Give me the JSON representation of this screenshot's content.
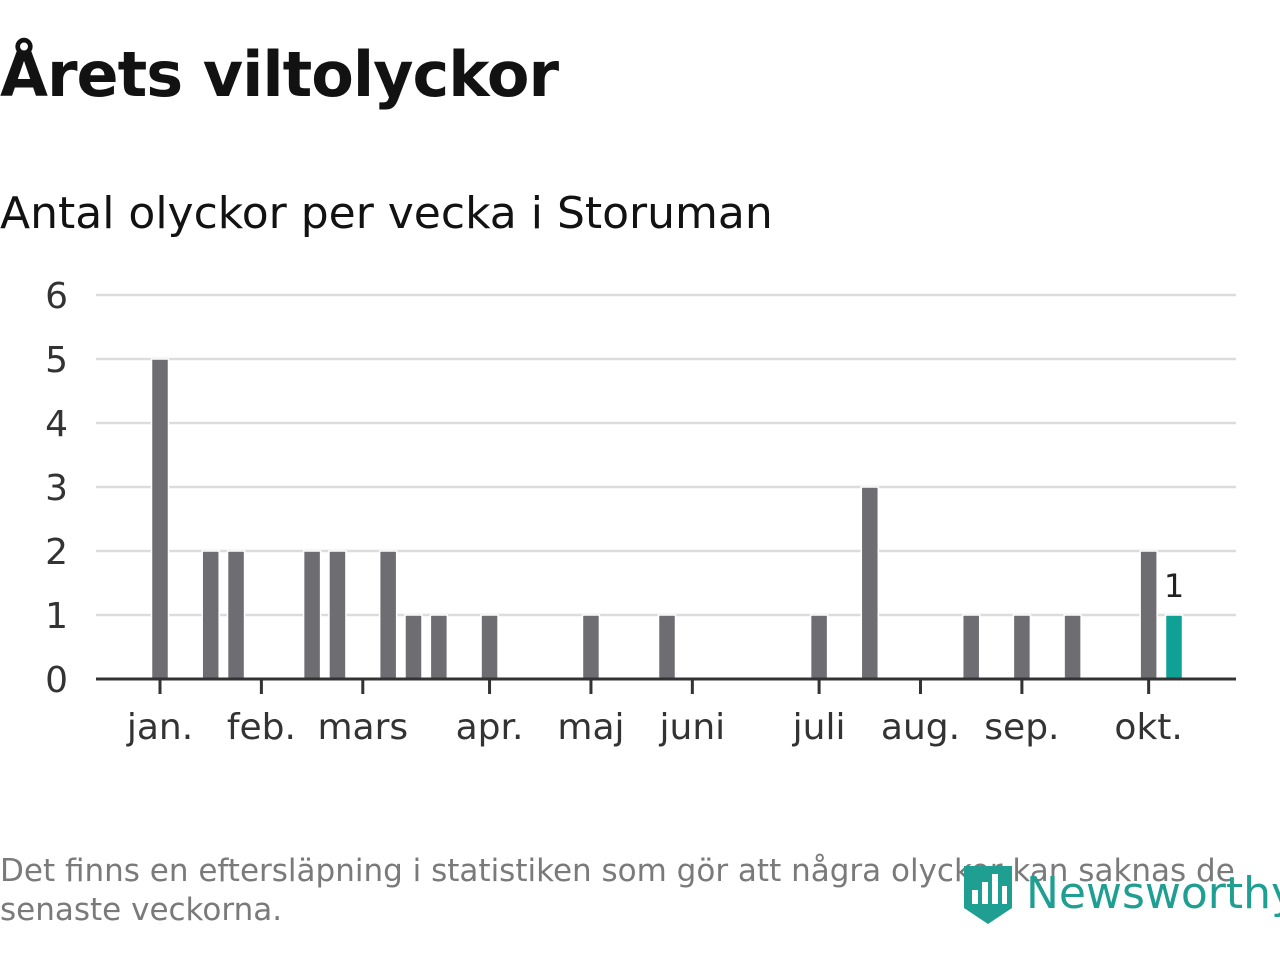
{
  "header": {
    "title": "Årets viltolyckor",
    "subtitle": "Antal olyckor per vecka i Storuman"
  },
  "chart_data": {
    "type": "bar",
    "title": "Årets viltolyckor",
    "subtitle": "Antal olyckor per vecka i Storuman",
    "xlabel": "",
    "ylabel": "",
    "ylim": [
      0,
      6
    ],
    "yticks": [
      "0",
      "1",
      "2",
      "3",
      "4",
      "5",
      "6"
    ],
    "grid": true,
    "week_labels": [
      "jan.",
      "feb.",
      "mars",
      "apr.",
      "maj",
      "juni",
      "juli",
      "aug.",
      "sep.",
      "okt."
    ],
    "week_label_positions": [
      1,
      5,
      9,
      14,
      18,
      22,
      27,
      31,
      35,
      40
    ],
    "weeks": [
      1,
      2,
      3,
      4,
      5,
      6,
      7,
      8,
      9,
      10,
      11,
      12,
      13,
      14,
      15,
      16,
      17,
      18,
      19,
      20,
      21,
      22,
      23,
      24,
      25,
      26,
      27,
      28,
      29,
      30,
      31,
      32,
      33,
      34,
      35,
      36,
      37,
      38,
      39,
      40,
      41
    ],
    "values": [
      5,
      0,
      2,
      2,
      0,
      0,
      2,
      2,
      0,
      2,
      1,
      1,
      0,
      1,
      0,
      0,
      0,
      1,
      0,
      0,
      1,
      0,
      0,
      0,
      0,
      0,
      1,
      0,
      3,
      0,
      0,
      0,
      1,
      0,
      1,
      0,
      1,
      0,
      0,
      2,
      1
    ],
    "highlight_index": 40,
    "highlight_label": "1",
    "bar_color": "#6e6d72",
    "highlight_color": "#0fa195"
  },
  "footer": {
    "note": "Det finns en eftersläpning i statistiken som gör att några olyckor kan saknas de senaste veckorna.",
    "brand": "Newsworthy",
    "brand_color": "#1f9e92"
  }
}
